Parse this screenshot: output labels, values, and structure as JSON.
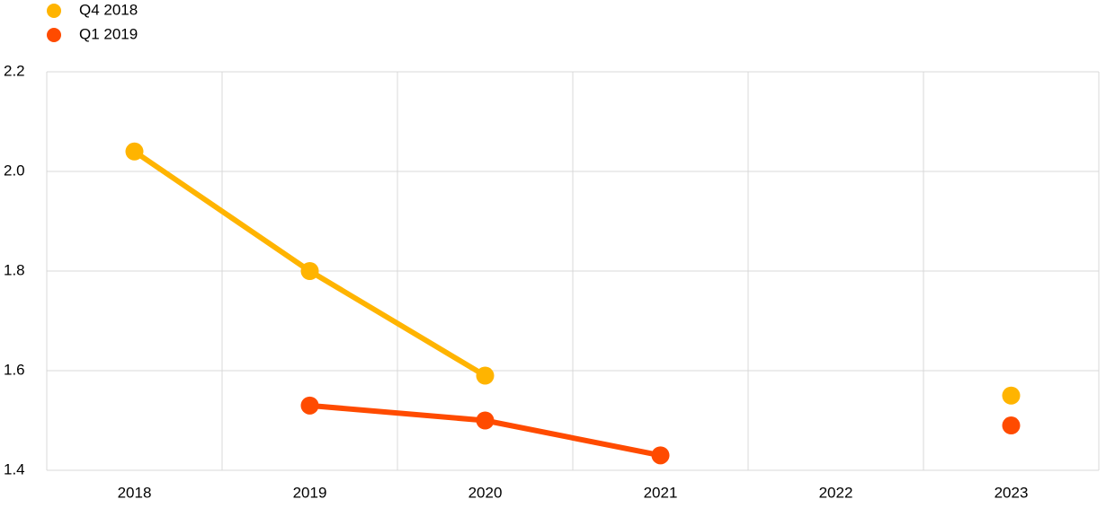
{
  "chart_data": {
    "type": "line",
    "categories": [
      "2018",
      "2019",
      "2020",
      "2021",
      "2022",
      "2023"
    ],
    "series": [
      {
        "name": "Q4 2018",
        "color": "#FFB400",
        "values": [
          2.04,
          1.8,
          1.59,
          null,
          null,
          1.55
        ]
      },
      {
        "name": "Q1 2019",
        "color": "#FF4B00",
        "values": [
          null,
          1.53,
          1.5,
          1.43,
          null,
          1.49
        ]
      }
    ],
    "ylim": [
      1.4,
      2.2
    ],
    "yticks": [
      {
        "value": 1.4,
        "label": "1.4"
      },
      {
        "value": 1.6,
        "label": "1.6"
      },
      {
        "value": 1.8,
        "label": "1.8"
      },
      {
        "value": 2.0,
        "label": "2.0"
      },
      {
        "value": 2.2,
        "label": "2.2"
      }
    ],
    "grid": true,
    "legend": "top-left"
  }
}
